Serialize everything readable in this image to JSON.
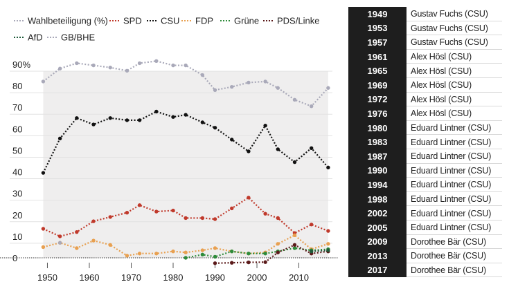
{
  "chart_data": {
    "type": "line",
    "x_ticks": [
      1950,
      1960,
      1970,
      1980,
      1990,
      2000,
      2010
    ],
    "y_ticks": [
      {
        "value": 0,
        "label": "0"
      },
      {
        "value": 10,
        "label": "10"
      },
      {
        "value": 20,
        "label": "20"
      },
      {
        "value": 30,
        "label": "30"
      },
      {
        "value": 40,
        "label": "40"
      },
      {
        "value": 50,
        "label": "50"
      },
      {
        "value": 60,
        "label": "60"
      },
      {
        "value": 70,
        "label": "70"
      },
      {
        "value": 80,
        "label": "80"
      },
      {
        "value": 90,
        "label": "90%"
      }
    ],
    "xlim": [
      1941,
      2019
    ],
    "ylim": [
      0,
      90
    ],
    "shaded_span": [
      1949,
      2017
    ],
    "series": [
      {
        "name": "Wahlbeteiligung (%)",
        "color": "#a9a9b9",
        "x": [
          1949,
          1953,
          1957,
          1961,
          1965,
          1969,
          1972,
          1976,
          1980,
          1983,
          1987,
          1990,
          1994,
          1998,
          2002,
          2005,
          2009,
          2013,
          2017
        ],
        "y": [
          82,
          88,
          90.5,
          89.5,
          88.5,
          87,
          90.5,
          91.5,
          89.5,
          89.5,
          85,
          78,
          79.5,
          81.5,
          82,
          79,
          73.5,
          70.5,
          79
        ]
      },
      {
        "name": "SPD",
        "color": "#c0392b",
        "x": [
          1949,
          1953,
          1957,
          1961,
          1965,
          1969,
          1972,
          1976,
          1980,
          1983,
          1987,
          1990,
          1994,
          1998,
          2002,
          2005,
          2009,
          2013,
          2017
        ],
        "y": [
          13.5,
          10,
          12,
          17,
          19,
          21,
          24.5,
          21.5,
          22,
          18.5,
          18.5,
          18,
          23,
          28,
          20.5,
          18.5,
          11.5,
          15.5,
          12.5
        ]
      },
      {
        "name": "CSU",
        "color": "#111111",
        "x": [
          1949,
          1953,
          1957,
          1961,
          1965,
          1969,
          1972,
          1976,
          1980,
          1983,
          1987,
          1990,
          1994,
          1998,
          2002,
          2005,
          2009,
          2013,
          2017
        ],
        "y": [
          39.5,
          55.5,
          65,
          62,
          65,
          64,
          64,
          68,
          65.5,
          66.5,
          63,
          60.5,
          55,
          49.5,
          61.5,
          50.5,
          44.5,
          51,
          42
        ]
      },
      {
        "name": "FDP",
        "color": "#e8a050",
        "x": [
          1949,
          1953,
          1957,
          1961,
          1965,
          1969,
          1972,
          1976,
          1980,
          1983,
          1987,
          1990,
          1994,
          1998,
          2002,
          2005,
          2009,
          2013,
          2017
        ],
        "y": [
          5,
          7,
          4.5,
          8,
          6,
          1,
          2,
          2,
          3,
          2.5,
          3.5,
          4.5,
          3,
          2,
          2.5,
          6.5,
          10.5,
          4,
          6.5
        ]
      },
      {
        "name": "Grüne",
        "color": "#2e8b3a",
        "x": [
          1983,
          1987,
          1990,
          1994,
          1998,
          2002,
          2005,
          2009,
          2013,
          2017
        ],
        "y": [
          0,
          1.5,
          0.5,
          3,
          2,
          2,
          3,
          4.5,
          3.5,
          4
        ]
      },
      {
        "name": "PDS/Linke",
        "color": "#5b1a1a",
        "x": [
          1990,
          1994,
          1998,
          2002,
          2005,
          2009,
          2013,
          2017
        ],
        "y": [
          -2.5,
          -2.3,
          -2.1,
          -2,
          2.5,
          6,
          2,
          3
        ]
      },
      {
        "name": "AfD",
        "color": "#1f5a3a",
        "x": [
          2013,
          2017
        ],
        "y": [
          3,
          3.5
        ]
      },
      {
        "name": "GB/BHE",
        "color": "#a9a9b9",
        "x": [
          1953
        ],
        "y": [
          7
        ]
      }
    ]
  },
  "winners": [
    {
      "year": "1949",
      "name": "Gustav Fuchs (CSU)"
    },
    {
      "year": "1953",
      "name": "Gustav Fuchs (CSU)"
    },
    {
      "year": "1957",
      "name": "Gustav Fuchs (CSU)"
    },
    {
      "year": "1961",
      "name": "Alex Hösl (CSU)"
    },
    {
      "year": "1965",
      "name": "Alex Hösl (CSU)"
    },
    {
      "year": "1969",
      "name": "Alex Hösl (CSU)"
    },
    {
      "year": "1972",
      "name": "Alex Hösl (CSU)"
    },
    {
      "year": "1976",
      "name": "Alex Hösl (CSU)"
    },
    {
      "year": "1980",
      "name": "Eduard Lintner (CSU)"
    },
    {
      "year": "1983",
      "name": "Eduard Lintner (CSU)"
    },
    {
      "year": "1987",
      "name": "Eduard Lintner (CSU)"
    },
    {
      "year": "1990",
      "name": "Eduard Lintner (CSU)"
    },
    {
      "year": "1994",
      "name": "Eduard Lintner (CSU)"
    },
    {
      "year": "1998",
      "name": "Eduard Lintner (CSU)"
    },
    {
      "year": "2002",
      "name": "Eduard Lintner (CSU)"
    },
    {
      "year": "2005",
      "name": "Eduard Lintner (CSU)"
    },
    {
      "year": "2009",
      "name": "Dorothee Bär (CSU)"
    },
    {
      "year": "2013",
      "name": "Dorothee Bär (CSU)"
    },
    {
      "year": "2017",
      "name": "Dorothee Bär (CSU)"
    }
  ]
}
